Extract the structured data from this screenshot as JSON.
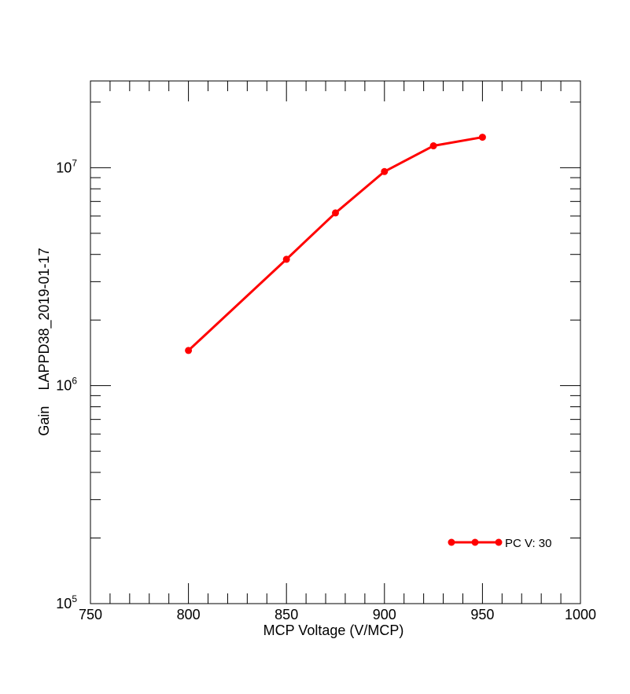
{
  "chart_data": {
    "type": "line",
    "title": "",
    "xlabel": "MCP Voltage (V/MCP)",
    "ylabel": "Gain    LAPPD38_2019-01-17",
    "xlim": [
      750,
      1000
    ],
    "ylim": [
      100000,
      25000000
    ],
    "yscale": "log",
    "x_ticks": [
      "750",
      "800",
      "850",
      "900",
      "950",
      "1000"
    ],
    "y_ticks": [
      {
        "base": "10",
        "exp": "5",
        "value": 100000
      },
      {
        "base": "10",
        "exp": "6",
        "value": 1000000
      },
      {
        "base": "10",
        "exp": "7",
        "value": 10000000
      }
    ],
    "grid": false,
    "legend_position": "bottom-right",
    "series": [
      {
        "name": "PC V: 30",
        "color": "#ff0000",
        "marker": "circle",
        "x": [
          800,
          850,
          875,
          900,
          925,
          950
        ],
        "y": [
          1450000,
          3800000,
          6200000,
          9600000,
          12600000,
          13800000
        ]
      }
    ]
  }
}
